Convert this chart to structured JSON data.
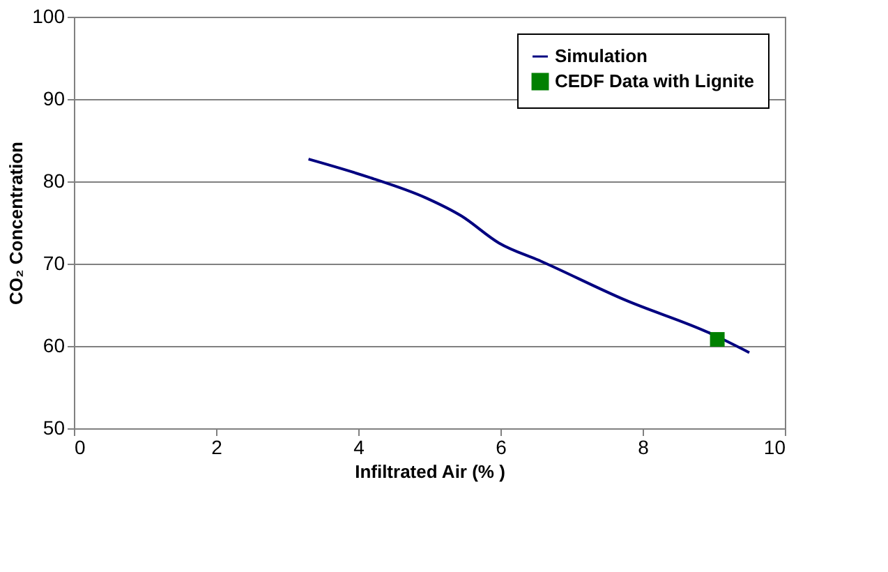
{
  "chart_data": {
    "type": "line",
    "xlabel": "Infiltrated Air (% )",
    "ylabel": "CO₂ Concentration",
    "xlim": [
      0,
      10
    ],
    "xticks": [
      0,
      2,
      4,
      6,
      8,
      10
    ],
    "ylim": [
      50,
      100
    ],
    "yticks": [
      50,
      60,
      70,
      80,
      90,
      100
    ],
    "grid": "y",
    "legend": "top right",
    "series": [
      {
        "name": "Simulation",
        "color": "#000080",
        "marker": "none",
        "x": [
          3.3,
          4.15,
          4.95,
          5.45,
          5.98,
          6.57,
          7.75,
          8.96,
          9.5
        ],
        "values": [
          82.7,
          80.5,
          78.0,
          75.8,
          72.5,
          70.3,
          65.6,
          61.5,
          59.2
        ]
      },
      {
        "name": "CEDF Data with Lignite",
        "color": "#008000",
        "marker": "square",
        "x": [
          9.05
        ],
        "values": [
          60.8
        ]
      }
    ]
  }
}
